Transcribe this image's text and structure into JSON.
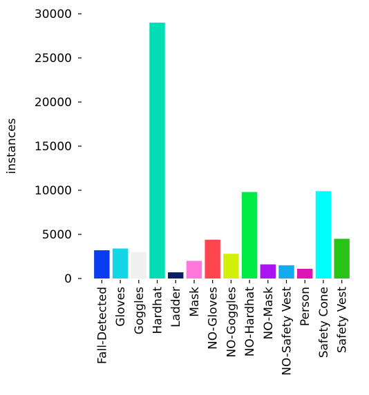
{
  "chart_data": {
    "type": "bar",
    "y_label": "instances",
    "categories": [
      "Fall-Detected",
      "Gloves",
      "Goggles",
      "Hardhat",
      "Ladder",
      "Mask",
      "NO-Gloves",
      "NO-Goggles",
      "NO-Hardhat",
      "NO-Mask",
      "NO-Safety Vest",
      "Person",
      "Safety Cone",
      "Safety Vest"
    ],
    "values": [
      3200,
      3400,
      3000,
      29000,
      700,
      2000,
      4400,
      2800,
      9800,
      1600,
      1500,
      1100,
      9900,
      4500
    ],
    "colors": [
      "#0a3cf0",
      "#14d7e6",
      "#f0f0f0",
      "#00dcb4",
      "#0a1e64",
      "#ff78dc",
      "#ff4650",
      "#d2f00a",
      "#00eb46",
      "#aa14f0",
      "#14aaf0",
      "#dc14b4",
      "#00ffff",
      "#28c314"
    ],
    "ylim": [
      0,
      30000
    ],
    "yticks": [
      0,
      5000,
      10000,
      15000,
      20000,
      25000,
      30000
    ]
  }
}
